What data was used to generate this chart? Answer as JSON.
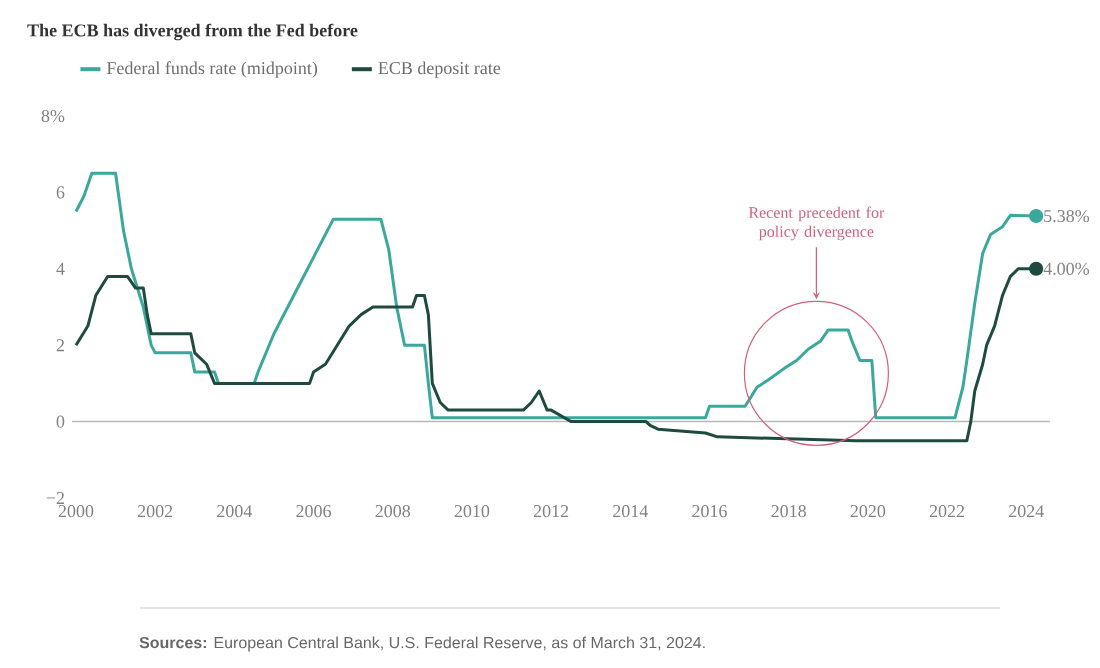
{
  "chart_data": {
    "type": "line",
    "title": "The ECB has diverged from the Fed before",
    "xlim": [
      1999.9,
      2024.6
    ],
    "xticks": [
      2000,
      2002,
      2004,
      2006,
      2008,
      2010,
      2012,
      2014,
      2016,
      2018,
      2020,
      2022,
      2024
    ],
    "ylim": [
      -2,
      8
    ],
    "yticks": [
      {
        "value": -2,
        "label": "−2"
      },
      0,
      2,
      4,
      6,
      {
        "value": 8,
        "label": "8%"
      }
    ],
    "grid": false,
    "legend": "top left",
    "marker": "none",
    "line_style": "solid",
    "ref_lines": [
      {
        "axis": "y",
        "value": 0,
        "color": "#b8b8b8"
      }
    ],
    "annotations": [
      "**Sources:** European Central Bank, U.S. Federal Reserve, as of March 31, 2024.",
      {
        "text": "Recent precedent for policy divergence",
        "x": 2018.7,
        "y": 3.2
      }
    ],
    "series": [
      {
        "name": "Federal funds rate (midpoint)",
        "color": "#3aa89a",
        "x": [
          2000.0,
          2000.2,
          2000.4,
          2001.0,
          2001.2,
          2001.4,
          2001.7,
          2001.9,
          2002.0,
          2002.9,
          2003.0,
          2003.5,
          2003.6,
          2004.5,
          2004.6,
          2005.0,
          2005.5,
          2006.0,
          2006.5,
          2007.7,
          2007.9,
          2008.1,
          2008.3,
          2008.8,
          2008.9,
          2009.0,
          2015.9,
          2016.0,
          2016.9,
          2017.2,
          2017.5,
          2017.9,
          2018.2,
          2018.5,
          2018.8,
          2019.0,
          2019.5,
          2019.6,
          2019.8,
          2020.1,
          2020.2,
          2022.2,
          2022.4,
          2022.5,
          2022.7,
          2022.9,
          2023.1,
          2023.4,
          2023.6,
          2024.25
        ],
        "values": [
          5.5,
          5.9,
          6.5,
          6.5,
          5.0,
          4.0,
          3.0,
          2.0,
          1.8,
          1.8,
          1.3,
          1.3,
          1.0,
          1.0,
          1.3,
          2.3,
          3.3,
          4.3,
          5.3,
          5.3,
          4.5,
          3.0,
          2.0,
          2.0,
          1.0,
          0.1,
          0.1,
          0.4,
          0.4,
          0.9,
          1.1,
          1.4,
          1.6,
          1.9,
          2.1,
          2.4,
          2.4,
          2.1,
          1.6,
          1.6,
          0.1,
          0.1,
          0.9,
          1.6,
          3.1,
          4.4,
          4.9,
          5.1,
          5.4,
          5.38
        ],
        "value_labels": [
          null,
          null,
          null,
          null,
          null,
          null,
          null,
          null,
          null,
          null,
          null,
          null,
          null,
          null,
          null,
          null,
          null,
          null,
          null,
          null,
          null,
          null,
          null,
          null,
          null,
          null,
          null,
          null,
          null,
          null,
          null,
          null,
          null,
          null,
          null,
          null,
          null,
          null,
          null,
          null,
          null,
          null,
          null,
          null,
          null,
          null,
          null,
          null,
          null,
          "5.38%"
        ]
      },
      {
        "name": "ECB deposit rate",
        "color": "#1f4a40",
        "x": [
          2000.0,
          2000.3,
          2000.5,
          2000.8,
          2001.3,
          2001.5,
          2001.7,
          2001.8,
          2001.9,
          2002.9,
          2003.0,
          2003.3,
          2003.5,
          2005.9,
          2006.0,
          2006.3,
          2006.6,
          2006.9,
          2007.2,
          2007.5,
          2008.5,
          2008.6,
          2008.8,
          2008.9,
          2009.0,
          2009.2,
          2009.4,
          2011.3,
          2011.5,
          2011.7,
          2011.9,
          2012.0,
          2012.5,
          2014.4,
          2014.5,
          2014.7,
          2015.9,
          2016.2,
          2019.7,
          2022.5,
          2022.6,
          2022.7,
          2022.9,
          2023.0,
          2023.2,
          2023.4,
          2023.6,
          2023.8,
          2024.25
        ],
        "values": [
          2.0,
          2.5,
          3.3,
          3.8,
          3.8,
          3.5,
          3.5,
          2.8,
          2.3,
          2.3,
          1.8,
          1.5,
          1.0,
          1.0,
          1.3,
          1.5,
          2.0,
          2.5,
          2.8,
          3.0,
          3.0,
          3.3,
          3.3,
          2.8,
          1.0,
          0.5,
          0.3,
          0.3,
          0.5,
          0.8,
          0.3,
          0.3,
          0.0,
          0.0,
          -0.1,
          -0.2,
          -0.3,
          -0.4,
          -0.5,
          -0.5,
          0.0,
          0.8,
          1.5,
          2.0,
          2.5,
          3.3,
          3.8,
          4.0,
          4.0
        ],
        "value_labels": [
          null,
          null,
          null,
          null,
          null,
          null,
          null,
          null,
          null,
          null,
          null,
          null,
          null,
          null,
          null,
          null,
          null,
          null,
          null,
          null,
          null,
          null,
          null,
          null,
          null,
          null,
          null,
          null,
          null,
          null,
          null,
          null,
          null,
          null,
          null,
          null,
          null,
          null,
          null,
          null,
          null,
          null,
          null,
          null,
          null,
          null,
          null,
          null,
          "4.00%"
        ]
      }
    ]
  }
}
